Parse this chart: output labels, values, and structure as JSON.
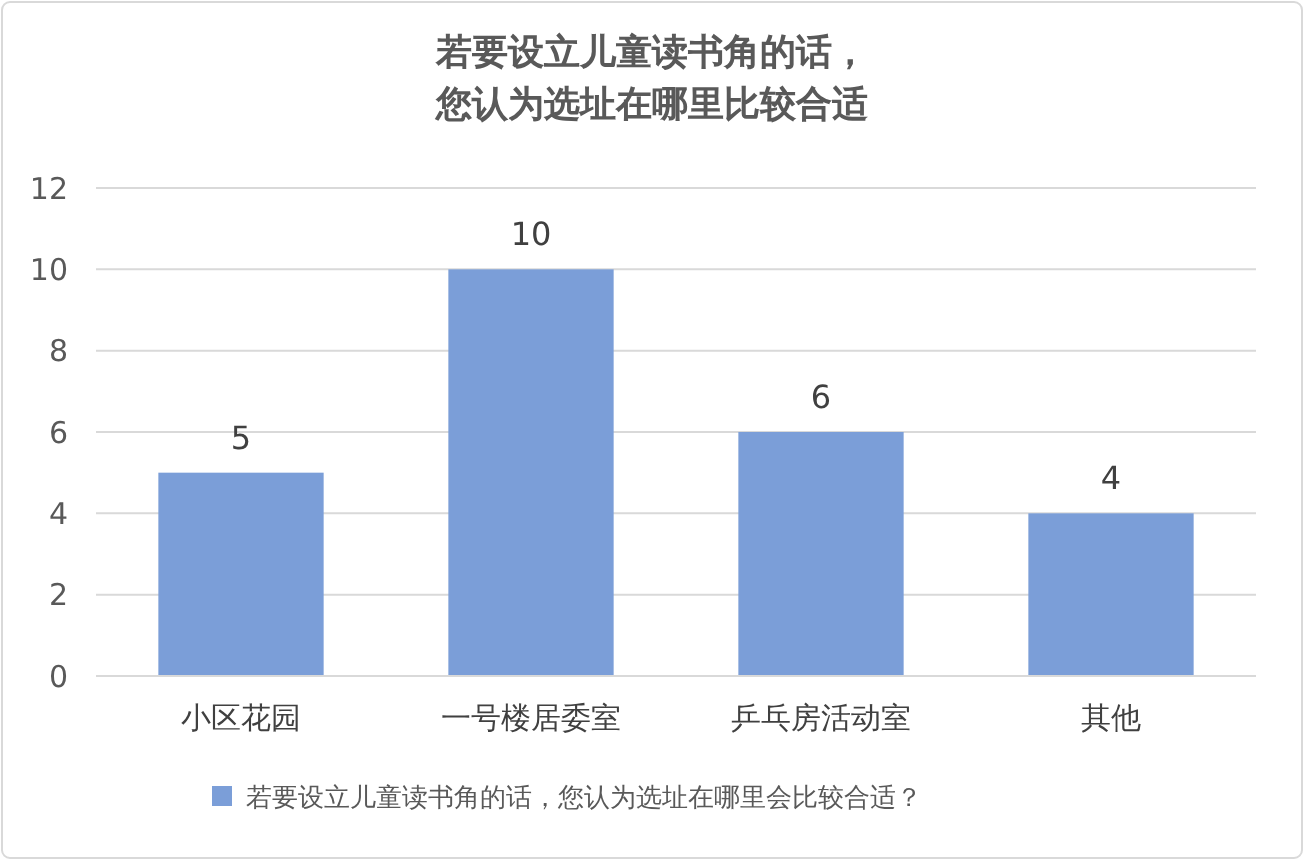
{
  "chart_data": {
    "type": "bar",
    "title": "若要设立儿童读书角的话，您认为选址在哪里比较合适",
    "categories": [
      "小区花园",
      "一号楼居委室",
      "乒乓房活动室",
      "其他"
    ],
    "series": [
      {
        "name": "若要设立儿童读书角的话，您认为选址在哪里会比较合适？",
        "color": "#7b9ed8",
        "values": [
          5,
          10,
          6,
          4
        ]
      }
    ],
    "ylim": [
      0,
      12
    ],
    "yticks": [
      0,
      2,
      4,
      6,
      8,
      10,
      12
    ],
    "grid": "y",
    "legend": "bottom",
    "data_labels": true
  }
}
